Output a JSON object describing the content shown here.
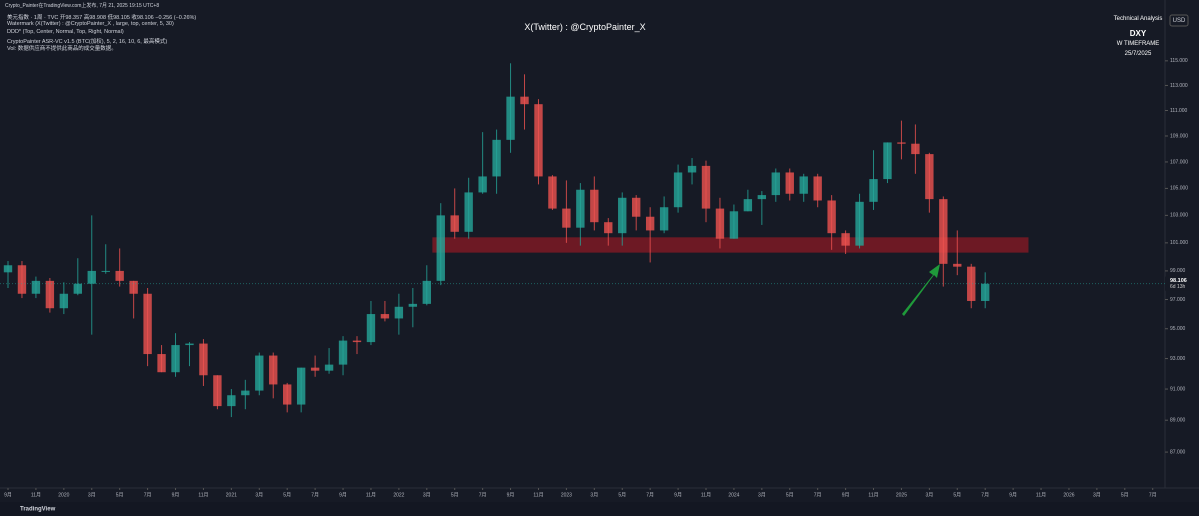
{
  "header": {
    "lines": [
      "美元指数 · 1周 · TVC  开98.357 高98.908 低98.105 收98.106 −0.256 (−0.26%)",
      "Watermark (X(Twitter) : @CryptoPainter_X , large, top, center, 5, 30)",
      "DDD* (Top, Center, Normal, Top, Right, Normal)",
      "CryptoPainter ASR-VC v1.5 (BTC(加权), 5, 2, 16, 10, 6, 最高模式)",
      "Vol: 数据供应商不提供此商品的成交量数据。"
    ],
    "publisher": "Crypto_Painter在TradingView.com上发布, 7月 21, 2025 19:15 UTC+8",
    "watermark": "X(Twitter) : @CryptoPainter_X",
    "panel": [
      "Technical Analysis",
      "DXY",
      "W TIMEFRAME",
      "25/7/2025"
    ],
    "currency": "USD",
    "footer": "TradingView"
  },
  "chart_data": {
    "type": "candlestick",
    "log_scale": true,
    "x": [
      0,
      1,
      2,
      3,
      4,
      5,
      6,
      7,
      8,
      9,
      10,
      11,
      12,
      13,
      14,
      15,
      16,
      17,
      18,
      19,
      20,
      21,
      22,
      23,
      24,
      25,
      26,
      27,
      28,
      29,
      30,
      31,
      32,
      33,
      34,
      35,
      36,
      37,
      38,
      39,
      40,
      41,
      42,
      43,
      44,
      45,
      46,
      47,
      48,
      49,
      50,
      51,
      52,
      53,
      54,
      55,
      56,
      57,
      58,
      59,
      60,
      61,
      62,
      63,
      64,
      65,
      66,
      67,
      68,
      69,
      70
    ],
    "open": [
      98.9,
      99.4,
      97.4,
      98.3,
      96.4,
      97.4,
      98.1,
      99.0,
      99.0,
      98.3,
      97.4,
      93.3,
      92.1,
      93.9,
      94.0,
      91.9,
      89.9,
      90.6,
      90.9,
      93.2,
      91.3,
      90.0,
      92.4,
      92.2,
      92.6,
      94.2,
      94.1,
      96.0,
      95.7,
      96.5,
      96.7,
      98.3,
      103.0,
      101.8,
      104.7,
      105.9,
      108.7,
      112.1,
      111.5,
      105.9,
      103.5,
      102.1,
      104.9,
      102.5,
      101.7,
      104.3,
      102.9,
      101.9,
      103.6,
      106.2,
      106.7,
      103.5,
      101.3,
      103.3,
      104.2,
      104.5,
      106.2,
      104.6,
      105.9,
      104.1,
      101.7,
      100.8,
      104.0,
      105.7,
      108.5,
      108.4,
      107.6,
      104.2,
      99.5,
      99.3,
      96.9
    ],
    "high": [
      99.7,
      99.7,
      98.6,
      98.5,
      98.2,
      99.9,
      103.0,
      100.9,
      100.6,
      98.3,
      97.8,
      93.9,
      94.7,
      94.1,
      94.3,
      91.9,
      91.0,
      91.6,
      93.4,
      93.4,
      91.4,
      92.4,
      93.2,
      93.7,
      94.5,
      94.5,
      96.9,
      96.9,
      97.4,
      97.8,
      99.4,
      103.9,
      105.0,
      105.8,
      109.3,
      109.5,
      114.8,
      113.9,
      111.9,
      106.0,
      105.6,
      105.4,
      105.9,
      102.8,
      104.7,
      104.5,
      103.6,
      104.4,
      106.8,
      107.3,
      107.1,
      104.3,
      103.8,
      104.9,
      104.8,
      106.5,
      106.5,
      106.1,
      106.1,
      104.5,
      101.9,
      104.6,
      107.9,
      108.5,
      110.2,
      109.9,
      107.7,
      104.4,
      101.9,
      99.5,
      98.9
    ],
    "low": [
      97.8,
      97.1,
      97.1,
      96.1,
      96.0,
      97.3,
      94.6,
      98.8,
      97.9,
      95.7,
      92.5,
      92.1,
      91.8,
      92.5,
      91.2,
      89.7,
      89.2,
      89.7,
      90.6,
      90.4,
      89.5,
      89.5,
      91.8,
      92.0,
      91.9,
      93.3,
      93.9,
      95.5,
      94.6,
      95.1,
      96.6,
      98.0,
      101.3,
      101.3,
      104.6,
      104.6,
      107.7,
      109.5,
      105.3,
      103.4,
      101.0,
      100.8,
      101.9,
      100.8,
      100.8,
      101.9,
      99.6,
      101.7,
      103.2,
      105.3,
      102.5,
      100.6,
      101.3,
      103.3,
      102.3,
      104.0,
      104.1,
      104.0,
      103.6,
      100.5,
      100.2,
      100.6,
      103.4,
      105.4,
      107.2,
      106.1,
      103.2,
      97.9,
      98.7,
      96.4,
      96.4
    ],
    "close": [
      99.4,
      97.4,
      98.3,
      96.4,
      97.4,
      98.1,
      99.0,
      99.0,
      98.3,
      97.4,
      93.3,
      92.1,
      93.9,
      94.0,
      91.9,
      89.9,
      90.6,
      90.9,
      93.2,
      91.3,
      90.0,
      92.4,
      92.2,
      92.6,
      94.2,
      94.1,
      96.0,
      95.7,
      96.5,
      96.7,
      98.3,
      103.0,
      101.8,
      104.7,
      105.9,
      108.7,
      112.1,
      111.5,
      105.9,
      103.5,
      102.1,
      104.9,
      102.5,
      101.7,
      104.3,
      102.9,
      101.9,
      103.6,
      106.2,
      106.7,
      103.5,
      101.3,
      103.3,
      104.2,
      104.5,
      106.2,
      104.6,
      105.9,
      104.1,
      101.7,
      100.8,
      104.0,
      105.7,
      108.5,
      108.4,
      107.6,
      104.2,
      99.5,
      99.3,
      96.9,
      98.1
    ],
    "up_color": "#26a69a",
    "down_color": "#ef5350",
    "xlim": [
      -0.573,
      82.88
    ],
    "ylim": [
      84.8,
      120.1
    ],
    "xticks": [
      {
        "value": 0,
        "label": "9月"
      },
      {
        "value": 2,
        "label": "11月"
      },
      {
        "value": 4,
        "label": "2020"
      },
      {
        "value": 6,
        "label": "3月"
      },
      {
        "value": 8,
        "label": "5月"
      },
      {
        "value": 10,
        "label": "7月"
      },
      {
        "value": 12,
        "label": "9月"
      },
      {
        "value": 14,
        "label": "11月"
      },
      {
        "value": 16,
        "label": "2021"
      },
      {
        "value": 18,
        "label": "3月"
      },
      {
        "value": 20,
        "label": "5月"
      },
      {
        "value": 22,
        "label": "7月"
      },
      {
        "value": 24,
        "label": "9月"
      },
      {
        "value": 26,
        "label": "11月"
      },
      {
        "value": 28,
        "label": "2022"
      },
      {
        "value": 30,
        "label": "3月"
      },
      {
        "value": 32,
        "label": "5月"
      },
      {
        "value": 34,
        "label": "7月"
      },
      {
        "value": 36,
        "label": "9月"
      },
      {
        "value": 38,
        "label": "11月"
      },
      {
        "value": 40,
        "label": "2023"
      },
      {
        "value": 42,
        "label": "3月"
      },
      {
        "value": 44,
        "label": "5月"
      },
      {
        "value": 46,
        "label": "7月"
      },
      {
        "value": 48,
        "label": "9月"
      },
      {
        "value": 50,
        "label": "11月"
      },
      {
        "value": 52,
        "label": "2024"
      },
      {
        "value": 54,
        "label": "3月"
      },
      {
        "value": 56,
        "label": "5月"
      },
      {
        "value": 58,
        "label": "7月"
      },
      {
        "value": 60,
        "label": "9月"
      },
      {
        "value": 62,
        "label": "11月"
      },
      {
        "value": 64,
        "label": "2025"
      },
      {
        "value": 66,
        "label": "3月"
      },
      {
        "value": 68,
        "label": "5月"
      },
      {
        "value": 70,
        "label": "7月"
      },
      {
        "value": 72,
        "label": "9月"
      },
      {
        "value": 74,
        "label": "11月"
      },
      {
        "value": 76,
        "label": "2026"
      },
      {
        "value": 78,
        "label": "3月"
      },
      {
        "value": 80,
        "label": "5月"
      },
      {
        "value": 82,
        "label": "7月"
      }
    ],
    "yticks": [
      {
        "value": 87,
        "label": "87.000"
      },
      {
        "value": 89,
        "label": "89.000"
      },
      {
        "value": 91,
        "label": "91.000"
      },
      {
        "value": 93,
        "label": "93.000"
      },
      {
        "value": 95,
        "label": "95.000"
      },
      {
        "value": 97,
        "label": "97.000"
      },
      {
        "value": 99,
        "label": "99.000"
      },
      {
        "value": 101,
        "label": "101.000"
      },
      {
        "value": 103,
        "label": "103.000"
      },
      {
        "value": 105,
        "label": "105.000"
      },
      {
        "value": 107,
        "label": "107.000"
      },
      {
        "value": 109,
        "label": "109.000"
      },
      {
        "value": 111,
        "label": "111.000"
      },
      {
        "value": 113,
        "label": "113.000"
      },
      {
        "value": 115,
        "label": "115.000"
      }
    ],
    "zone": {
      "xlim": [
        30.4,
        73.1
      ],
      "ylim": [
        100.3,
        101.4
      ],
      "color": "#8b1a24"
    },
    "last_price": 98.106,
    "countdown": "6d 13h"
  }
}
